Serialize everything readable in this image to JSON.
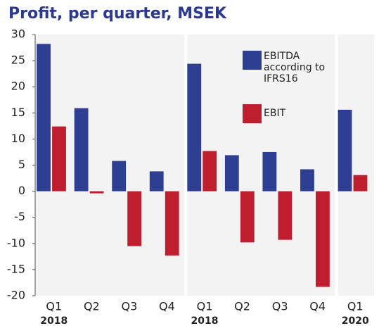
{
  "chart_data": {
    "type": "bar",
    "title": "Profit, per quarter, MSEK",
    "categories": [
      "Q1",
      "Q2",
      "Q3",
      "Q4",
      "Q1",
      "Q2",
      "Q3",
      "Q4",
      "Q1"
    ],
    "years": [
      "2018",
      null,
      null,
      null,
      "2018",
      null,
      null,
      null,
      "2020"
    ],
    "series": [
      {
        "name": "EBITDA according to IFRS16",
        "color": "#2e3f93",
        "values": [
          28.2,
          15.9,
          5.8,
          3.8,
          24.4,
          6.9,
          7.5,
          4.2,
          15.6
        ]
      },
      {
        "name": "EBIT",
        "color": "#be1e2d",
        "values": [
          12.4,
          -0.4,
          -10.5,
          -12.3,
          7.7,
          -9.8,
          -9.3,
          -18.3,
          3.1
        ]
      }
    ],
    "ylim": [
      -20,
      30
    ],
    "yticks": [
      -20,
      -15,
      -10,
      -5,
      0,
      5,
      10,
      15,
      20,
      25,
      30
    ]
  }
}
